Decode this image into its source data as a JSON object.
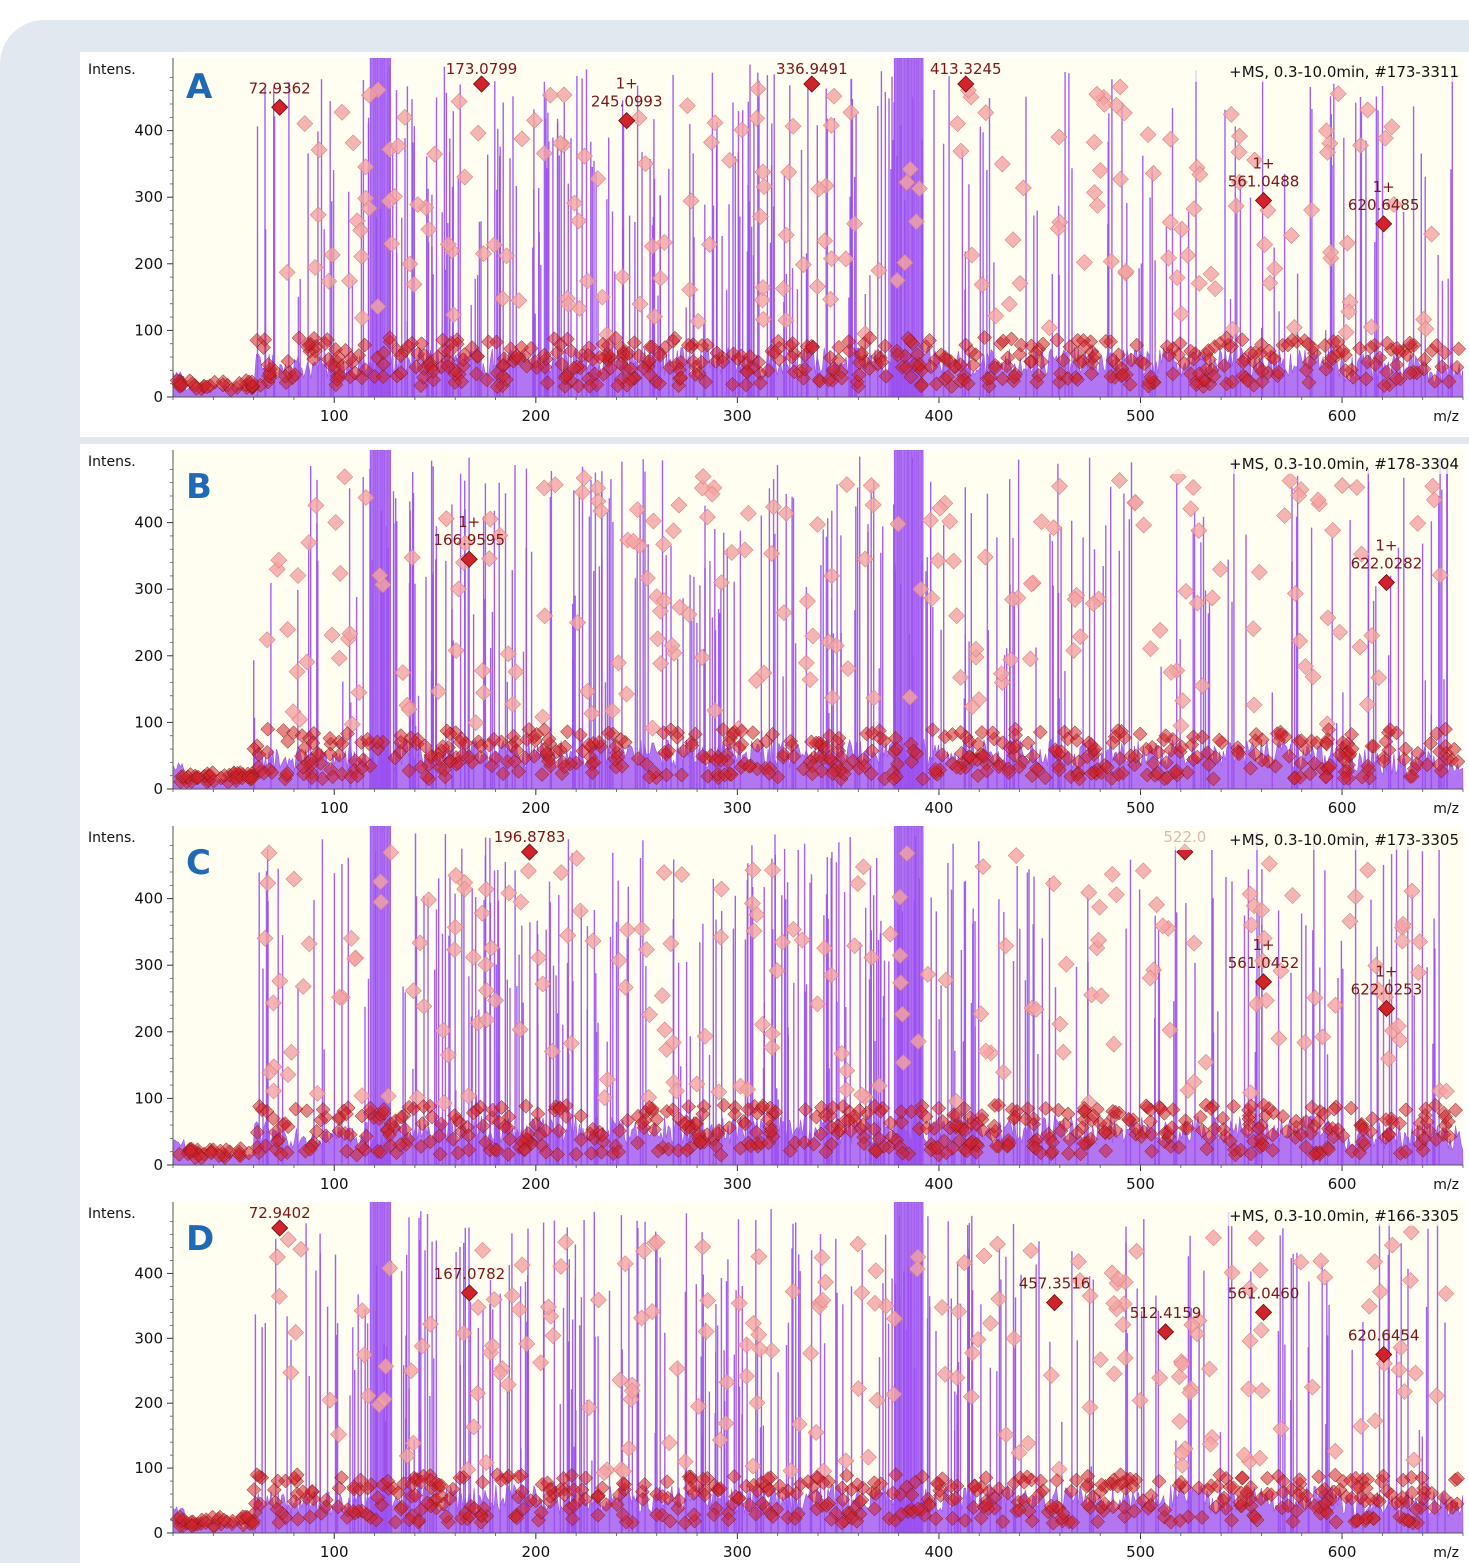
{
  "colors": {
    "frame_background": "#e2e8ef",
    "plot_background": "#fffef0",
    "spectrum_fill": "#a55ef2",
    "spectrum_line": "#9a4ff0",
    "peak_marker": "#d0232b",
    "peak_marker_faint": "#f2a4a4",
    "peak_label": "#7a1616",
    "panel_letter": "#1f6ab5"
  },
  "chart_data": [
    {
      "panel": "A",
      "type": "line",
      "title": "+MS, 0.3-10.0min, #173-3311",
      "xlabel": "m/z",
      "ylabel": "Intens.",
      "xlim": [
        20,
        660
      ],
      "ylim": [
        0,
        470
      ],
      "x_ticks": [
        "100",
        "200",
        "300",
        "400",
        "500",
        "600"
      ],
      "y_ticks": [
        "0",
        "100",
        "200",
        "300",
        "400"
      ],
      "labeled_peaks": [
        {
          "mz": 72.9362,
          "label": "72.9362",
          "charge": "",
          "intensity": 435
        },
        {
          "mz": 173.0799,
          "label": "173.0799",
          "charge": "",
          "intensity": 470
        },
        {
          "mz": 245.0993,
          "label": "245.0993",
          "charge": "1+",
          "intensity": 415
        },
        {
          "mz": 336.9491,
          "label": "336.9491",
          "charge": "",
          "intensity": 470
        },
        {
          "mz": 413.3245,
          "label": "413.3245",
          "charge": "",
          "intensity": 470
        },
        {
          "mz": 561.0488,
          "label": "561.0488",
          "charge": "1+",
          "intensity": 295
        },
        {
          "mz": 620.6485,
          "label": "620.6485",
          "charge": "1+",
          "intensity": 260
        }
      ]
    },
    {
      "panel": "B",
      "type": "line",
      "title": "+MS, 0.3-10.0min, #178-3304",
      "xlabel": "m/z",
      "ylabel": "Intens.",
      "xlim": [
        20,
        660
      ],
      "ylim": [
        0,
        470
      ],
      "x_ticks": [
        "100",
        "200",
        "300",
        "400",
        "500",
        "600"
      ],
      "y_ticks": [
        "0",
        "100",
        "200",
        "300",
        "400"
      ],
      "labeled_peaks": [
        {
          "mz": 166.9595,
          "label": "166.9595",
          "charge": "1+",
          "intensity": 345
        },
        {
          "mz": 622.0282,
          "label": "622.0282",
          "charge": "1+",
          "intensity": 310
        }
      ]
    },
    {
      "panel": "C",
      "type": "line",
      "title": "+MS, 0.3-10.0min, #173-3305",
      "xlabel": "m/z",
      "ylabel": "Intens.",
      "xlim": [
        20,
        660
      ],
      "ylim": [
        0,
        470
      ],
      "x_ticks": [
        "100",
        "200",
        "300",
        "400",
        "500",
        "600"
      ],
      "y_ticks": [
        "0",
        "100",
        "200",
        "300",
        "400"
      ],
      "labeled_peaks": [
        {
          "mz": 196.8783,
          "label": "196.8783",
          "charge": "",
          "intensity": 470
        },
        {
          "mz": 522.0,
          "label": "522.0",
          "charge": "",
          "intensity": 470
        },
        {
          "mz": 561.0452,
          "label": "561.0452",
          "charge": "1+",
          "intensity": 275
        },
        {
          "mz": 622.0253,
          "label": "622.0253",
          "charge": "1+",
          "intensity": 235
        }
      ]
    },
    {
      "panel": "D",
      "type": "line",
      "title": "+MS, 0.3-10.0min, #166-3305",
      "xlabel": "m/z",
      "ylabel": "Intens.",
      "xlim": [
        20,
        660
      ],
      "ylim": [
        0,
        470
      ],
      "x_ticks": [
        "100",
        "200",
        "300",
        "400",
        "500",
        "600"
      ],
      "y_ticks": [
        "0",
        "100",
        "200",
        "300",
        "400"
      ],
      "labeled_peaks": [
        {
          "mz": 72.9402,
          "label": "72.9402",
          "charge": "",
          "intensity": 470
        },
        {
          "mz": 167.0782,
          "label": "167.0782",
          "charge": "",
          "intensity": 370
        },
        {
          "mz": 457.3516,
          "label": "457.3516",
          "charge": "",
          "intensity": 355
        },
        {
          "mz": 512.4159,
          "label": "512.4159",
          "charge": "",
          "intensity": 310
        },
        {
          "mz": 561.046,
          "label": "561.0460",
          "charge": "",
          "intensity": 340
        },
        {
          "mz": 620.6454,
          "label": "620.6454",
          "charge": "",
          "intensity": 275
        }
      ]
    }
  ]
}
